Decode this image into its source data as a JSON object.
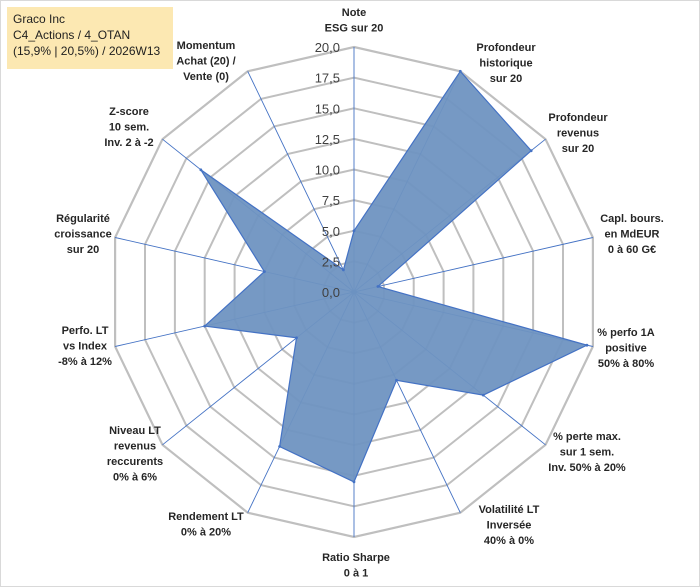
{
  "chart_data": {
    "type": "radar",
    "title_lines": [
      "Graco Inc",
      "C4_Actions / 4_OTAN",
      "(15,9% | 20,5%) / 2026W13"
    ],
    "rmin": 0,
    "rmax": 20,
    "tick_labels": [
      "0,0",
      "2,5",
      "5,0",
      "7,5",
      "10,0",
      "12,5",
      "15,0",
      "17,5",
      "20,0"
    ],
    "ticks": [
      0,
      2.5,
      5,
      7.5,
      10,
      12.5,
      15,
      17.5,
      20
    ],
    "axes": [
      {
        "lines": [
          "Note",
          "ESG sur 20"
        ],
        "value": 5
      },
      {
        "lines": [
          "Profondeur",
          "historique",
          "sur 20"
        ],
        "value": 20
      },
      {
        "lines": [
          "Profondeur",
          "revenus",
          "sur 20"
        ],
        "value": 18.5
      },
      {
        "lines": [
          "Capl. bours.",
          "en MdEUR",
          "0 à 60 G€"
        ],
        "value": 2
      },
      {
        "lines": [
          "% perfo 1A",
          "positive",
          "50% à 80%"
        ],
        "value": 19.5
      },
      {
        "lines": [
          "% perte max.",
          "sur 1 sem.",
          "Inv. 50% à 20%"
        ],
        "value": 13.5
      },
      {
        "lines": [
          "Volatilité LT",
          "Inversée",
          "40% à 0%"
        ],
        "value": 8
      },
      {
        "lines": [
          "Ratio Sharpe",
          "0 à 1"
        ],
        "value": 15.5
      },
      {
        "lines": [
          "Rendement LT",
          "0% à 20%"
        ],
        "value": 14
      },
      {
        "lines": [
          "Niveau LT",
          "revenus",
          "reccurents",
          "0% à 6%"
        ],
        "value": 6
      },
      {
        "lines": [
          "Perfo. LT",
          "vs Index",
          "-8% à 12%"
        ],
        "value": 12.5
      },
      {
        "lines": [
          "Régularité",
          "croissance",
          "sur 20"
        ],
        "value": 7.5
      },
      {
        "lines": [
          "Z-score",
          "10 sem.",
          "Inv. 2 à -2"
        ],
        "value": 16
      },
      {
        "lines": [
          "Momentum",
          "Achat (20) /",
          "Vente (0)"
        ],
        "value": 2
      }
    ],
    "colors": {
      "fill": "#6f93c1",
      "stroke": "#4472c4",
      "grid": "#bfbfbf",
      "axis": "#4472c4"
    }
  }
}
